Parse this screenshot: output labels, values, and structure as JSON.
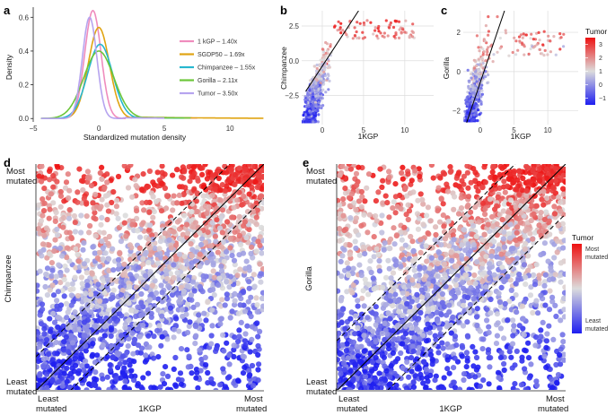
{
  "panel_labels": {
    "a": "a",
    "b": "b",
    "c": "c",
    "d": "d",
    "e": "e"
  },
  "colors": {
    "low": "#1f1ff0",
    "mid": "#dcdcdc",
    "high": "#ee1111"
  },
  "chart_data": [
    {
      "id": "a",
      "type": "line",
      "title": "",
      "xlabel": "Standardized mutation density",
      "ylabel": "Density",
      "xlim": [
        -5,
        13
      ],
      "ylim": [
        -0.02,
        0.66
      ],
      "xticks": [
        -5,
        0,
        5,
        10
      ],
      "yticks": [
        0.0,
        0.2,
        0.4,
        0.6
      ],
      "xtick_labels": [
        "−5",
        "0",
        "5",
        "10"
      ],
      "ytick_labels": [
        "0.0",
        "0.2",
        "0.4",
        "0.6"
      ],
      "legend_position": "right",
      "series": [
        {
          "name": "1 kGP – 1.40x",
          "color": "#ef8cbd",
          "mean": -0.45,
          "sd": 0.62,
          "peak": 0.64,
          "tail_start": 2.0,
          "tail_level": 0.007,
          "tail_end": 7.5
        },
        {
          "name": "SGDP50 – 1.69x",
          "color": "#e0a412",
          "mean": 0.0,
          "sd": 0.8,
          "peak": 0.54,
          "tail_start": 2.5,
          "tail_level": 0.009,
          "tail_end": 12.6
        },
        {
          "name": "Chimpanzee – 1.55x",
          "color": "#27b7cf",
          "mean": 0.1,
          "sd": 0.95,
          "peak": 0.44,
          "tail_start": 2.8,
          "tail_level": 0.005,
          "tail_end": 6.5
        },
        {
          "name": "Gorilla – 2.11x",
          "color": "#6cc63a",
          "mean": 0.0,
          "sd": 1.15,
          "peak": 0.4,
          "tail_start": 3.2,
          "tail_level": 0.006,
          "tail_end": 7.0
        },
        {
          "name": "Tumor – 3.50x",
          "color": "#b6a4ef",
          "mean": -0.7,
          "sd": 0.55,
          "peak": 0.6,
          "tail_start": 1.8,
          "tail_level": 0.004,
          "tail_end": 5.0
        }
      ]
    },
    {
      "id": "b",
      "type": "scatter",
      "xlabel": "1KGP",
      "ylabel": "Chimpanzee",
      "xlim": [
        -2.5,
        13.5
      ],
      "ylim": [
        -4.6,
        3.6
      ],
      "xticks": [
        0,
        5,
        10
      ],
      "yticks": [
        -2.5,
        0.0,
        2.5
      ],
      "xtick_labels": [
        "0",
        "5",
        "10"
      ],
      "ytick_labels": [
        "−2.5",
        "0.0",
        "2.5"
      ],
      "fit_line": {
        "x": [
          -2.0,
          4.4
        ],
        "y": [
          -2.2,
          3.6
        ]
      },
      "n_points": 700,
      "points": [
        [
          -1.5,
          -3.8,
          -1.3
        ],
        [
          -1.0,
          -3.2,
          -1.1
        ],
        [
          -0.5,
          -2.6,
          -0.9
        ],
        [
          0.0,
          -1.6,
          -0.6
        ],
        [
          0.5,
          -0.8,
          -0.2
        ],
        [
          1.0,
          0.2,
          0.2
        ],
        [
          1.5,
          0.9,
          0.6
        ],
        [
          2.0,
          1.6,
          1.2
        ],
        [
          0.5,
          1.8,
          2.0
        ],
        [
          -1.0,
          0.8,
          1.6
        ],
        [
          -0.5,
          1.5,
          2.2
        ],
        [
          3.0,
          2.0,
          1.5
        ],
        [
          5.0,
          2.6,
          2.2
        ],
        [
          8.0,
          2.7,
          2.5
        ],
        [
          11.5,
          2.5,
          2.0
        ],
        [
          12.5,
          2.4,
          1.8
        ]
      ]
    },
    {
      "id": "c",
      "type": "scatter",
      "xlabel": "1KGP",
      "ylabel": "Gorilla",
      "xlim": [
        -2.5,
        14.5
      ],
      "ylim": [
        -2.7,
        3.1
      ],
      "xticks": [
        0,
        5,
        10
      ],
      "yticks": [
        -2,
        0,
        2
      ],
      "xtick_labels": [
        "0",
        "5",
        "10"
      ],
      "ytick_labels": [
        "−2",
        "0",
        "2"
      ],
      "fit_line": {
        "x": [
          -2.0,
          3.6
        ],
        "y": [
          -2.6,
          3.1
        ]
      },
      "n_points": 700,
      "colorbar": {
        "title": "Tumor",
        "min": -1.5,
        "max": 3.5,
        "ticks": [
          -1,
          0,
          1,
          2,
          3
        ],
        "tick_labels": [
          "−1",
          "0",
          "1",
          "2",
          "3"
        ]
      },
      "points": [
        [
          -1.5,
          -2.3,
          -1.3
        ],
        [
          -1.0,
          -1.7,
          -1.1
        ],
        [
          -0.5,
          -1.2,
          -0.8
        ],
        [
          0.0,
          -0.6,
          -0.4
        ],
        [
          0.5,
          0.0,
          0.0
        ],
        [
          1.0,
          0.8,
          0.6
        ],
        [
          1.5,
          1.5,
          1.4
        ],
        [
          2.0,
          2.2,
          2.0
        ],
        [
          1.0,
          2.8,
          3.0
        ],
        [
          4.0,
          2.6,
          2.5
        ],
        [
          7.0,
          2.4,
          2.2
        ],
        [
          10.0,
          2.3,
          2.0
        ],
        [
          13.0,
          2.3,
          1.8
        ]
      ]
    },
    {
      "id": "d",
      "type": "scatter",
      "xlabel": "1KGP",
      "ylabel": "Chimpanzee",
      "xlim": [
        0,
        1
      ],
      "ylim": [
        0,
        1
      ],
      "x_axis_labels": {
        "low": [
          "Least",
          "mutated"
        ],
        "high": [
          "Most",
          "mutated"
        ]
      },
      "y_axis_labels": {
        "low": [
          "Least",
          "mutated"
        ],
        "high": [
          "Most",
          "mutated"
        ]
      },
      "diagonal": {
        "x": [
          0,
          1
        ],
        "y": [
          0,
          1
        ]
      },
      "bands": [
        {
          "x": [
            0,
            0.85
          ],
          "y": [
            0.15,
            1.0
          ]
        },
        {
          "x": [
            0.15,
            1.0
          ],
          "y": [
            0,
            0.85
          ]
        }
      ],
      "color_by": "Tumor rank",
      "n_points": 2300
    },
    {
      "id": "e",
      "type": "scatter",
      "xlabel": "1KGP",
      "ylabel": "Gorilla",
      "xlim": [
        0,
        1
      ],
      "ylim": [
        0,
        1
      ],
      "x_axis_labels": {
        "low": [
          "Least",
          "mutated"
        ],
        "high": [
          "Most",
          "mutated"
        ]
      },
      "y_axis_labels": {
        "low": [
          "Least",
          "mutated"
        ],
        "high": [
          "Most",
          "mutated"
        ]
      },
      "diagonal": {
        "x": [
          0,
          1
        ],
        "y": [
          0,
          1
        ]
      },
      "bands": [
        {
          "x": [
            0,
            0.78
          ],
          "y": [
            0.22,
            1.0
          ]
        },
        {
          "x": [
            0.22,
            1.0
          ],
          "y": [
            0,
            0.78
          ]
        }
      ],
      "color_by": "Tumor rank",
      "n_points": 2300,
      "colorbar": {
        "title": "Tumor",
        "high": [
          "Most",
          "mutated"
        ],
        "low": [
          "Least",
          "mutated"
        ]
      }
    }
  ]
}
